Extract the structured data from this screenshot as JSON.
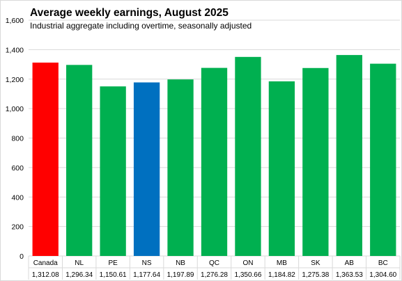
{
  "chart_data": {
    "type": "bar",
    "title": "Average weekly earnings, August 2025",
    "subtitle": "Industrial aggregate including overtime, seasonally adjusted",
    "categories": [
      "Canada",
      "NL",
      "PE",
      "NS",
      "NB",
      "QC",
      "ON",
      "MB",
      "SK",
      "AB",
      "BC"
    ],
    "values": [
      1312.08,
      1296.34,
      1150.61,
      1177.64,
      1197.89,
      1276.28,
      1350.66,
      1184.82,
      1275.38,
      1363.53,
      1304.6
    ],
    "value_labels": [
      "1,312.08",
      "1,296.34",
      "1,150.61",
      "1,177.64",
      "1,197.89",
      "1,276.28",
      "1,350.66",
      "1,184.82",
      "1,275.38",
      "1,363.53",
      "1,304.60"
    ],
    "bar_colors": [
      "#ff0000",
      "#00b050",
      "#00b050",
      "#0070c0",
      "#00b050",
      "#00b050",
      "#00b050",
      "#00b050",
      "#00b050",
      "#00b050",
      "#00b050"
    ],
    "ylim": [
      0,
      1600
    ],
    "yticks": [
      0,
      200,
      400,
      600,
      800,
      1000,
      1200,
      1400,
      1600
    ],
    "ytick_labels": [
      "0",
      "200",
      "400",
      "600",
      "800",
      "1,000",
      "1,200",
      "1,400",
      "1,600"
    ],
    "grid": true,
    "legend": "none"
  }
}
